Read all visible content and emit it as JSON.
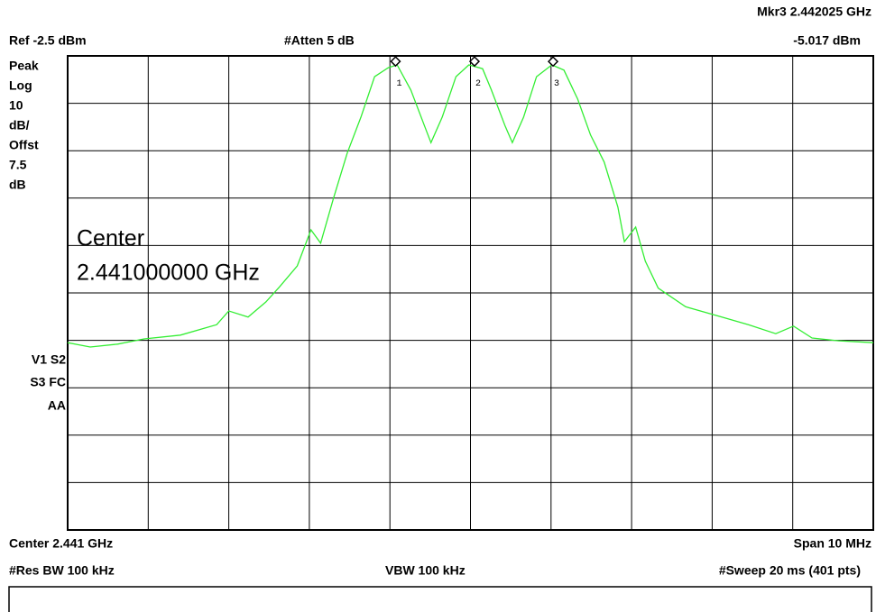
{
  "chart_data": {
    "type": "line",
    "header": {
      "marker_readout": "Mkr3  2.442025 GHz",
      "ref_level": "Ref -2.5 dBm",
      "attenuation": "#Atten 5 dB",
      "marker_level": "-5.017 dBm"
    },
    "side_labels": [
      "Peak",
      "Log",
      "10",
      "dB/",
      "Offst",
      "7.5",
      "dB"
    ],
    "status_labels": [
      "V1  S2",
      "S3  FC",
      "AA"
    ],
    "overlay": [
      "Center",
      "2.441000000 GHz"
    ],
    "footer": {
      "center": "Center 2.441 GHz",
      "span": "Span 10 MHz",
      "rbw": "#Res BW 100 kHz",
      "vbw": "VBW 100 kHz",
      "sweep": "#Sweep 20 ms (401 pts)"
    },
    "color": "#33ee33",
    "xlim": [
      2.436,
      2.446
    ],
    "ylim": [
      -102.5,
      -2.5
    ],
    "x": [
      2.436,
      2.43628,
      2.43662,
      2.43695,
      2.4374,
      2.43785,
      2.438,
      2.43824,
      2.43846,
      2.43863,
      2.43885,
      2.43902,
      2.43914,
      2.4393,
      2.43947,
      2.43964,
      2.43981,
      2.43998,
      2.44009,
      2.44026,
      2.44043,
      2.44051,
      2.44065,
      2.44082,
      2.44098,
      2.44115,
      2.44126,
      2.44143,
      2.44152,
      2.44166,
      2.44182,
      2.44201,
      2.44216,
      2.44233,
      2.44249,
      2.44266,
      2.44283,
      2.44291,
      2.44305,
      2.44317,
      2.44333,
      2.44367,
      2.44412,
      2.44445,
      2.44479,
      2.44501,
      2.44524,
      2.44557,
      2.446
    ],
    "values": [
      -63.0,
      -63.9,
      -63.3,
      -62.2,
      -61.4,
      -59.2,
      -56.3,
      -57.6,
      -54.4,
      -51.2,
      -46.8,
      -39.2,
      -42.0,
      -32.5,
      -23.0,
      -15.4,
      -6.9,
      -5.0,
      -4.4,
      -9.7,
      -17.3,
      -20.8,
      -15.4,
      -6.9,
      -4.4,
      -5.2,
      -9.7,
      -17.3,
      -20.8,
      -15.4,
      -6.9,
      -4.4,
      -5.5,
      -11.6,
      -19.2,
      -24.9,
      -34.4,
      -41.7,
      -38.6,
      -45.8,
      -51.5,
      -55.4,
      -57.6,
      -59.2,
      -61.1,
      -59.5,
      -62.0,
      -62.6,
      -63.0
    ],
    "markers": [
      {
        "label": "1",
        "x": 2.44007,
        "y": -5.0
      },
      {
        "label": "2",
        "x": 2.44105,
        "y": -5.0
      },
      {
        "label": "3",
        "x": 2.442025,
        "y": -5.017
      }
    ]
  }
}
